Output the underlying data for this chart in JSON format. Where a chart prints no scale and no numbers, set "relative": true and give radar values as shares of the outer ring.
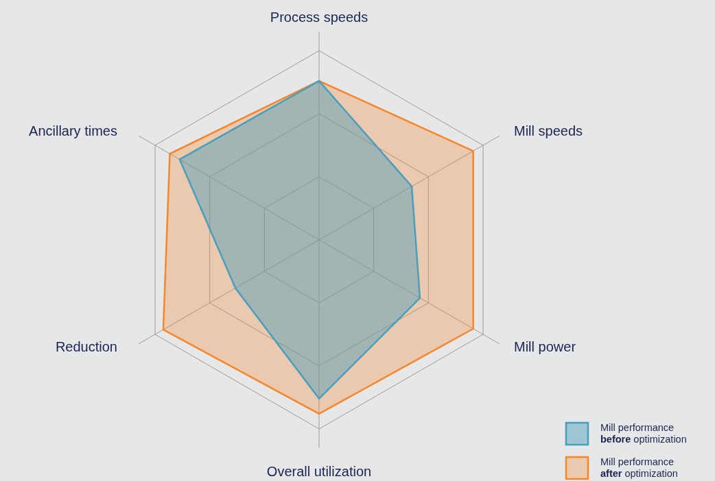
{
  "chart_data": {
    "type": "radar",
    "relative": true,
    "categories": [
      "Process speeds",
      "Mill speeds",
      "Mill power",
      "Overall utilization",
      "Reduction",
      "Ancillary times"
    ],
    "series": [
      {
        "name": "Mill performance before optimization",
        "color": "#4a9dbb",
        "values": [
          0.84,
          0.565,
          0.615,
          0.84,
          0.51,
          0.85
        ]
      },
      {
        "name": "Mill performance after optimization",
        "color": "#f5862a",
        "values": [
          0.84,
          0.94,
          0.94,
          0.92,
          0.95,
          0.91
        ]
      }
    ],
    "grid": true,
    "legend": "bottom right"
  }
}
